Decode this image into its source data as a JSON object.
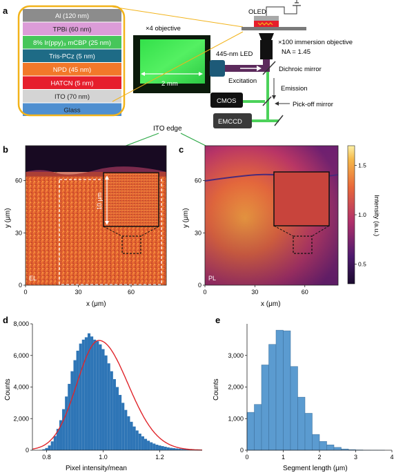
{
  "panel_labels": {
    "a": "a",
    "b": "b",
    "c": "c",
    "d": "d",
    "e": "e"
  },
  "panel_a": {
    "layers": [
      {
        "name": "Al (120 nm)",
        "color": "#8c8c8c",
        "text": "#ffffff"
      },
      {
        "name": "TPBi (60 nm)",
        "color": "#dc9cd8",
        "text": "#222222"
      },
      {
        "name": "8% Ir(ppy)₃ mCBP (25 nm)",
        "color": "#46c65a",
        "text": "#ffffff"
      },
      {
        "name": "Tris-PCz (5 nm)",
        "color": "#1e6b86",
        "text": "#ffffff"
      },
      {
        "name": "NPD (45 nm)",
        "color": "#f2782a",
        "text": "#ffffff"
      },
      {
        "name": "HATCN (5 nm)",
        "color": "#e61e2c",
        "text": "#ffffff"
      },
      {
        "name": "ITO (70 nm)",
        "color": "#d4d4d4",
        "text": "#222222"
      },
      {
        "name": "Glass",
        "color": "#4f8fd0",
        "text": "#222222"
      }
    ],
    "objective_x4_label": "×4 objective",
    "scale_bar_label": "2 mm",
    "oled_label": "OLED",
    "objective_x100_label": "×100 immersion objective",
    "na_label": "NA = 1.45",
    "led_label": "445-nm LED",
    "dichroic_label": "Dichroic mirror",
    "excitation_label": "Excitation",
    "emission_label": "Emission",
    "cmos_label": "CMOS",
    "pickoff_label": "Pick-off mirror",
    "emccd_label": "EMCCD",
    "ito_edge_label": "ITO edge",
    "colors": {
      "highlight": "#f2b31a",
      "green_emission": "#4cd25a",
      "excitation": "#5c2a5c",
      "led": "#1d5a78"
    }
  },
  "panel_b": {
    "corner_label": "EL",
    "xlabel": "x (μm)",
    "ylabel": "y (μm)",
    "xticks": [
      "0",
      "30",
      "60"
    ],
    "yticks": [
      "0",
      "30",
      "60"
    ],
    "inset_scale": "10 μm"
  },
  "panel_c": {
    "corner_label": "PL",
    "xlabel": "x (μm)",
    "ylabel": "y (μm)",
    "xticks": [
      "0",
      "30",
      "60"
    ],
    "yticks": [
      "0",
      "30",
      "60"
    ],
    "colorbar_label": "Intensity (a.u.)",
    "colorbar_ticks": [
      "1.5",
      "1.0",
      "0.5"
    ],
    "colorbar_range": [
      0.3,
      1.7
    ]
  },
  "chart_data": [
    {
      "type": "bar",
      "panel": "d",
      "xlabel": "Pixel intensity/mean",
      "ylabel": "Counts",
      "xlim": [
        0.75,
        1.35
      ],
      "ylim": [
        0,
        8000
      ],
      "xticks": [
        0.8,
        1.0,
        1.2
      ],
      "yticks": [
        0,
        2000,
        4000,
        6000,
        8000
      ],
      "ytick_labels": [
        "0",
        "2,000",
        "4,000",
        "6,000",
        "8,000"
      ],
      "bar_color": "#2e75b6",
      "fit_color": "#e0252b",
      "x": [
        0.78,
        0.79,
        0.8,
        0.81,
        0.82,
        0.83,
        0.84,
        0.85,
        0.86,
        0.87,
        0.88,
        0.89,
        0.9,
        0.91,
        0.92,
        0.93,
        0.94,
        0.95,
        0.96,
        0.97,
        0.98,
        0.99,
        1.0,
        1.01,
        1.02,
        1.03,
        1.04,
        1.05,
        1.06,
        1.07,
        1.08,
        1.09,
        1.1,
        1.11,
        1.12,
        1.13,
        1.14,
        1.15,
        1.16,
        1.17,
        1.18,
        1.19,
        1.2,
        1.21,
        1.22,
        1.23,
        1.24,
        1.25,
        1.26,
        1.27,
        1.28,
        1.29,
        1.3,
        1.31,
        1.32,
        1.33,
        1.34
      ],
      "values": [
        20,
        60,
        140,
        300,
        560,
        900,
        1350,
        1900,
        2600,
        3400,
        4200,
        5000,
        5700,
        6300,
        6750,
        7000,
        7150,
        7400,
        7200,
        7000,
        6900,
        6700,
        6400,
        6000,
        5500,
        5000,
        4500,
        4000,
        3500,
        3000,
        2550,
        2150,
        1800,
        1500,
        1250,
        1050,
        880,
        720,
        600,
        500,
        420,
        350,
        300,
        260,
        220,
        180,
        150,
        130,
        110,
        95,
        80,
        70,
        60,
        50,
        40,
        35,
        30
      ],
      "fit": {
        "mean": 0.985,
        "sigma": 0.082,
        "peak": 6950
      }
    },
    {
      "type": "bar",
      "panel": "e",
      "xlabel": "Segment length (μm)",
      "ylabel": "Counts",
      "xlim": [
        0,
        4
      ],
      "ylim": [
        0,
        4000
      ],
      "xticks": [
        0,
        1,
        2,
        3,
        4
      ],
      "yticks": [
        0,
        1000,
        2000,
        3000
      ],
      "ytick_labels": [
        "0",
        "1,000",
        "2,000",
        "3,000"
      ],
      "bar_color": "#5b9bd0",
      "bin_width": 0.2,
      "x": [
        0.1,
        0.3,
        0.5,
        0.7,
        0.9,
        1.1,
        1.3,
        1.5,
        1.7,
        1.9,
        2.1,
        2.3,
        2.5,
        2.7,
        2.9,
        3.1,
        3.3,
        3.5,
        3.7
      ],
      "values": [
        1200,
        1450,
        2700,
        3350,
        3800,
        3780,
        2650,
        1680,
        1170,
        500,
        280,
        170,
        90,
        40,
        20,
        10,
        5,
        3,
        2
      ]
    }
  ]
}
